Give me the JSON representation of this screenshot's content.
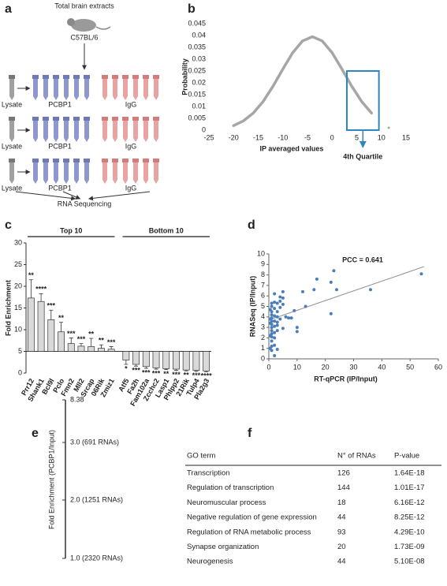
{
  "panel_labels": [
    "a",
    "b",
    "c",
    "d",
    "e",
    "f"
  ],
  "diagram": {
    "source": "Total brain extracts",
    "strain": "C57BL/6",
    "rows": [
      {
        "lysate": "Lysate",
        "ip": "PCBP1",
        "control": "IgG"
      },
      {
        "lysate": "Lysate",
        "ip": "PCBP1",
        "control": "IgG"
      },
      {
        "lysate": "Lysate",
        "ip": "PCBP1",
        "control": "IgG"
      }
    ],
    "output": "RNA Sequencing"
  },
  "chart_data": [
    {
      "type": "line",
      "xlabel": "IP averaged values",
      "ylabel": "Probability",
      "x": [
        -20,
        -18,
        -16,
        -14,
        -12,
        -10,
        -8,
        -6,
        -4,
        -2,
        0,
        2,
        4,
        6,
        8
      ],
      "values": [
        0.0019,
        0.0039,
        0.0072,
        0.0121,
        0.0185,
        0.0258,
        0.0327,
        0.0377,
        0.0395,
        0.0377,
        0.0327,
        0.0258,
        0.0185,
        0.0121,
        0.0072
      ],
      "color": "#a6a6a6",
      "outliers": {
        "x": [
          11.5
        ],
        "values": [
          0.001
        ]
      },
      "highlight": {
        "x": [
          3,
          9.5
        ],
        "y": [
          0,
          0.025
        ],
        "color": "#2e86c1",
        "label": "4th Quartile"
      },
      "xlim": [
        -25,
        15
      ],
      "ylim": [
        0,
        0.045
      ],
      "xticks": [
        -25,
        -20,
        -15,
        -10,
        -5,
        0,
        5,
        10,
        15
      ],
      "yticks": [
        0,
        0.005,
        0.01,
        0.015,
        0.02,
        0.025,
        0.03,
        0.035,
        0.04,
        0.045
      ]
    },
    {
      "type": "bar",
      "ylabel": "Fold Enrichment",
      "color": "#d9d9d9",
      "baseline": 5,
      "groups": [
        {
          "name": "Top 10",
          "categories": [
            "Prr12",
            "Shank1",
            "Bcl9l",
            "Pclo",
            "Fmn2",
            "Mll2",
            "Srcap",
            "06Rik",
            "Zmiz1"
          ],
          "values": [
            17.3,
            16.5,
            12.3,
            9.5,
            6.8,
            6.2,
            6.1,
            5.7,
            5.5
          ],
          "errors": [
            4.2,
            1.8,
            2.2,
            2.2,
            1.3,
            0.6,
            1.9,
            0.8,
            0.6
          ],
          "significance": [
            "**",
            "****",
            "***",
            "**",
            "***",
            "***",
            "**",
            "**",
            "***"
          ]
        },
        {
          "name": "Bottom 10",
          "categories": [
            "Atf5",
            "Fa2h",
            "Fam102a",
            "Zcchc2",
            "Lasp1",
            "Phlpp2",
            "21Rik",
            "Tulp4",
            "Pla2g3"
          ],
          "values": [
            3.0,
            2.0,
            1.5,
            1.2,
            1.0,
            0.9,
            0.7,
            0.6,
            0.5
          ],
          "errors": [
            1.0,
            0.4,
            0.4,
            0.3,
            0.2,
            0.3,
            0.2,
            0.2,
            0.2
          ],
          "significance": [
            "*",
            "***",
            "***",
            "***",
            "**",
            "***",
            "**",
            "***",
            "****"
          ]
        }
      ],
      "ylim": [
        0,
        30
      ],
      "yticks": [
        0,
        5,
        10,
        15,
        20,
        25,
        30
      ]
    },
    {
      "type": "scatter",
      "xlabel": "RT-qPCR (IP/Input)",
      "ylabel": "RNASeq (IP/Input)",
      "annotation": "PCC = 0.641",
      "color": "#4a7ebb",
      "x": [
        54,
        36,
        23,
        22,
        22,
        24,
        17,
        16,
        12,
        10,
        10,
        9,
        8,
        7,
        5,
        5,
        5,
        4,
        4,
        4,
        3,
        3,
        3,
        3,
        3,
        2,
        2,
        2,
        2,
        2,
        2,
        2,
        2,
        2,
        1,
        1,
        1,
        1,
        1,
        1,
        1,
        1,
        1,
        1,
        1,
        1,
        1,
        1,
        0.5,
        0.5,
        0.5,
        0.5,
        0.5,
        3,
        4,
        6,
        13,
        5,
        3,
        2
      ],
      "values": [
        8.1,
        6.6,
        8.4,
        7.3,
        4.3,
        6.6,
        7.6,
        6.6,
        6.4,
        3.0,
        2.6,
        4.6,
        3.9,
        3.9,
        6.4,
        5.8,
        5.2,
        5.9,
        5.5,
        4.9,
        5.3,
        4.5,
        4.0,
        3.5,
        2.7,
        6.2,
        5.4,
        4.8,
        4.1,
        3.6,
        3.1,
        2.5,
        2.0,
        1.3,
        5.3,
        5.0,
        4.5,
        4.2,
        3.9,
        3.6,
        3.3,
        3.0,
        2.7,
        2.4,
        2.1,
        1.7,
        1.2,
        0.8,
        4.7,
        3.8,
        3.4,
        2.2,
        1.0,
        3.2,
        3.8,
        4.0,
        5.0,
        2.9,
        0.9,
        0.3
      ],
      "trendline": {
        "x": [
          0,
          55
        ],
        "values": [
          3.7,
          8.8
        ],
        "color": "#8c8c8c"
      },
      "xlim": [
        0,
        60
      ],
      "ylim": [
        0,
        10
      ],
      "xticks": [
        0,
        10,
        20,
        30,
        40,
        50,
        60
      ],
      "yticks": [
        0,
        1,
        2,
        3,
        4,
        5,
        6,
        7,
        8,
        9,
        10
      ]
    }
  ],
  "scale": {
    "ylabel": "Fold Enrichment (PCBP1/Input)",
    "levels": [
      "8.38",
      "3.0 (691 RNAs)",
      "2.0 (1251 RNAs)",
      "1.0 (2320 RNAs)"
    ]
  },
  "table": {
    "header": [
      "GO term",
      "N° of RNAs",
      "P-value"
    ],
    "rows": [
      [
        "Transcription",
        126,
        "1.64E-18"
      ],
      [
        "Regulation of transcription",
        144,
        "1.01E-17"
      ],
      [
        "Neuromuscular process",
        18,
        "6.16E-12"
      ],
      [
        "Negative regulation of gene expression",
        44,
        "8.25E-12"
      ],
      [
        "Regulation of RNA metabolic process",
        93,
        "4.29E-10"
      ],
      [
        "Synapse organization",
        20,
        "1.73E-09"
      ],
      [
        "Neurogenesis",
        44,
        "5.10E-08"
      ]
    ]
  }
}
